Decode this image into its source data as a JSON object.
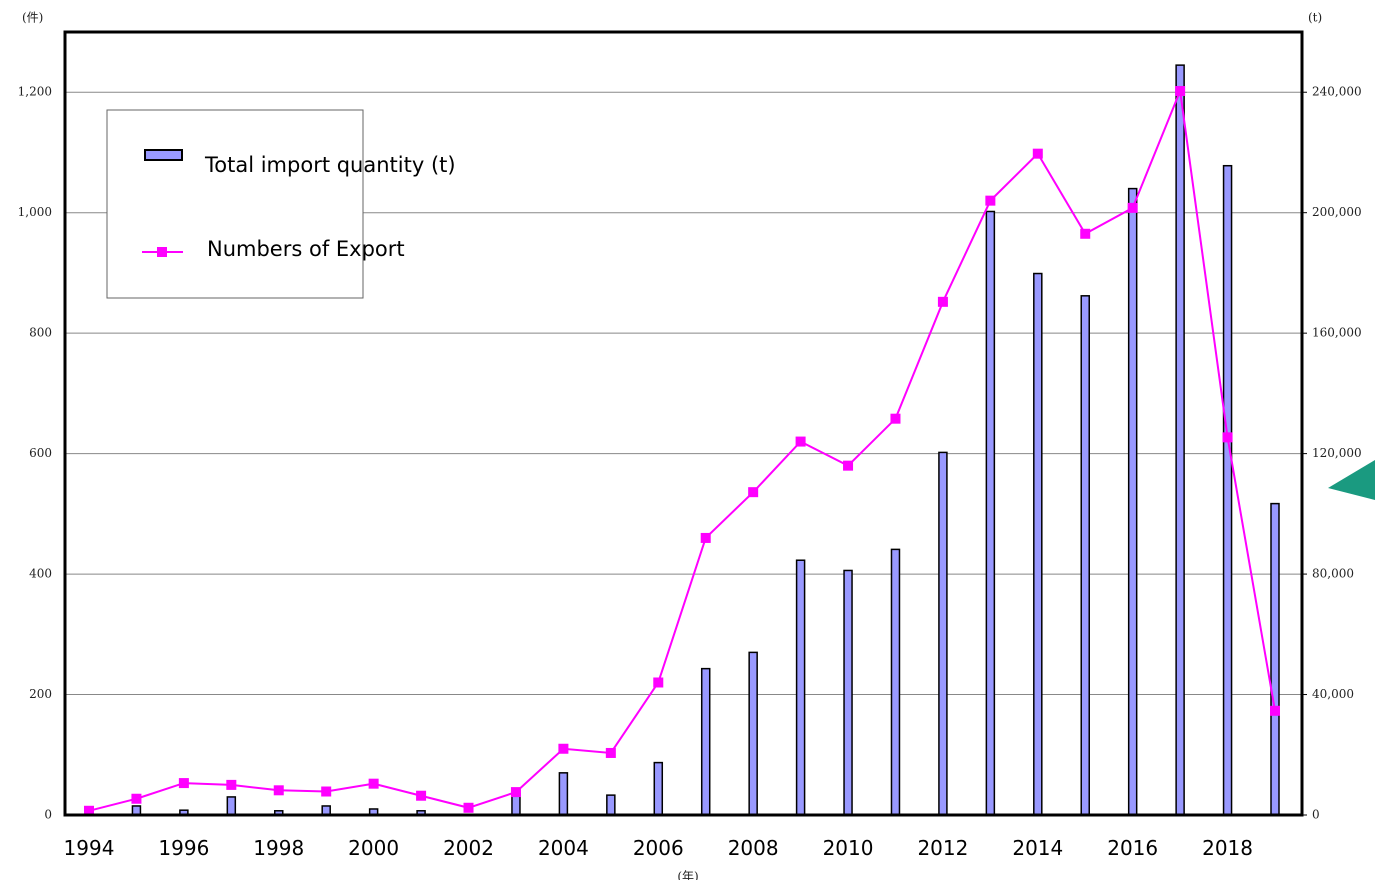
{
  "chart_data": {
    "type": "bar-line",
    "y_label": "(件)",
    "y2_label": "(t)",
    "x_label": "(年)",
    "categories": [
      "1994",
      null,
      "1996",
      null,
      "1998",
      null,
      "2000",
      null,
      "2002",
      null,
      "2004",
      null,
      "2006",
      null,
      "2008",
      null,
      "2010",
      null,
      "2012",
      null,
      "2014",
      null,
      "2016",
      null,
      "2018",
      null
    ],
    "series": [
      {
        "name": "Total import quantity (t)",
        "type": "bar",
        "axis": "y2",
        "color": "#9999ff",
        "values": [
          0,
          3000,
          1600,
          6000,
          1400,
          3000,
          2000,
          1400,
          0,
          7000,
          14000,
          6600,
          17400,
          48600,
          54000,
          84600,
          81200,
          88200,
          120400,
          200400,
          179800,
          172400,
          208000,
          249000,
          215600,
          103400
        ]
      },
      {
        "name": "Numbers of Export",
        "type": "line",
        "axis": "y",
        "color": "#ff00ff",
        "values": [
          7,
          27,
          53,
          50,
          41,
          39,
          52,
          32,
          12,
          38,
          110,
          103,
          220,
          460,
          536,
          620,
          580,
          658,
          852,
          1020,
          1098,
          965,
          1008,
          1202,
          627,
          173
        ]
      }
    ],
    "ylim": [
      0,
      1300
    ],
    "yticks": [
      0,
      200,
      400,
      600,
      800,
      {
        "value": 1000,
        "label": "1,000"
      },
      {
        "value": 1200,
        "label": "1,200"
      }
    ],
    "y2lim": [
      0,
      260000
    ],
    "y2ticks": [
      0,
      {
        "value": 40000,
        "label": "40,000"
      },
      {
        "value": 80000,
        "label": "80,000"
      },
      {
        "value": 120000,
        "label": "120,000"
      },
      {
        "value": 160000,
        "label": "160,000"
      },
      {
        "value": 200000,
        "label": "200,000"
      },
      {
        "value": 240000,
        "label": "240,000"
      }
    ],
    "grid": true
  }
}
